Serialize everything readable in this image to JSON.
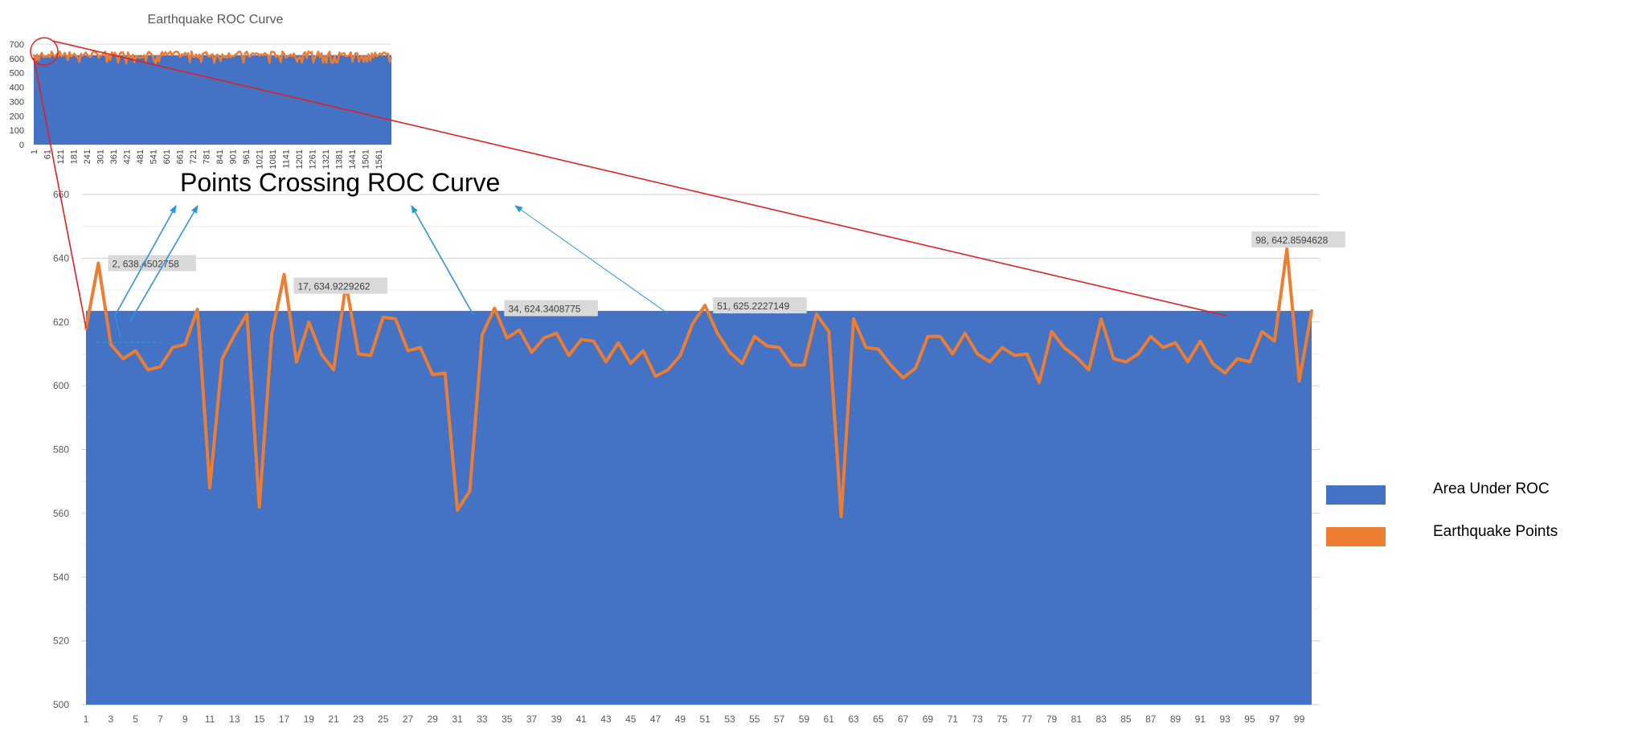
{
  "chart_data": [
    {
      "type": "area",
      "title": "Earthquake ROC Curve",
      "ylim": [
        0,
        700
      ],
      "yticks": [
        0,
        100,
        200,
        300,
        400,
        500,
        600,
        700
      ],
      "xticks": [
        "1",
        "61",
        "121",
        "181",
        "241",
        "301",
        "361",
        "421",
        "481",
        "541",
        "601",
        "661",
        "721",
        "781",
        "841",
        "901",
        "961",
        "1021",
        "1081",
        "1141",
        "1201",
        "1261",
        "1321",
        "1381",
        "1441",
        "1501",
        "1561"
      ],
      "n_points": 1620,
      "series": [
        {
          "name": "Area Under ROC",
          "constant_value": 623.5
        },
        {
          "name": "Earthquake Points",
          "typical_range": [
            560,
            660
          ]
        }
      ],
      "annotation": "zoom circle around x 1–100"
    },
    {
      "type": "area",
      "title": "Points Crossing ROC Curve",
      "ylim": [
        500,
        660
      ],
      "yticks": [
        500,
        520,
        540,
        560,
        580,
        600,
        620,
        640,
        660
      ],
      "xticks": [
        "1",
        "3",
        "5",
        "7",
        "9",
        "11",
        "13",
        "15",
        "17",
        "19",
        "21",
        "23",
        "25",
        "27",
        "29",
        "31",
        "33",
        "35",
        "37",
        "39",
        "41",
        "43",
        "45",
        "47",
        "49",
        "51",
        "53",
        "55",
        "57",
        "59",
        "61",
        "63",
        "65",
        "67",
        "69",
        "71",
        "73",
        "75",
        "77",
        "79",
        "81",
        "83",
        "85",
        "87",
        "89",
        "91",
        "93",
        "95",
        "97",
        "99"
      ],
      "x": [
        1,
        2,
        3,
        4,
        5,
        6,
        7,
        8,
        9,
        10,
        11,
        12,
        13,
        14,
        15,
        16,
        17,
        18,
        19,
        20,
        21,
        22,
        23,
        24,
        25,
        26,
        27,
        28,
        29,
        30,
        31,
        32,
        33,
        34,
        35,
        36,
        37,
        38,
        39,
        40,
        41,
        42,
        43,
        44,
        45,
        46,
        47,
        48,
        49,
        50,
        51,
        52,
        53,
        54,
        55,
        56,
        57,
        58,
        59,
        60,
        61,
        62,
        63,
        64,
        65,
        66,
        67,
        68,
        69,
        70,
        71,
        72,
        73,
        74,
        75,
        76,
        77,
        78,
        79,
        80,
        81,
        82,
        83,
        84,
        85,
        86,
        87,
        88,
        89,
        90,
        91,
        92,
        93,
        94,
        95,
        96,
        97,
        98,
        99,
        100
      ],
      "series": [
        {
          "name": "Area Under ROC",
          "values": [
            623.5,
            623.5,
            623.5,
            623.5,
            623.5,
            623.5,
            623.5,
            623.5,
            623.5,
            623.5,
            623.5,
            623.5,
            623.5,
            623.5,
            623.5,
            623.5,
            623.5,
            623.5,
            623.5,
            623.5,
            623.5,
            623.5,
            623.5,
            623.5,
            623.5,
            623.5,
            623.5,
            623.5,
            623.5,
            623.5,
            623.5,
            623.5,
            623.5,
            623.5,
            623.5,
            623.5,
            623.5,
            623.5,
            623.5,
            623.5,
            623.5,
            623.5,
            623.5,
            623.5,
            623.5,
            623.5,
            623.5,
            623.5,
            623.5,
            623.5,
            623.5,
            623.5,
            623.5,
            623.5,
            623.5,
            623.5,
            623.5,
            623.5,
            623.5,
            623.5,
            623.5,
            623.5,
            623.5,
            623.5,
            623.5,
            623.5,
            623.5,
            623.5,
            623.5,
            623.5,
            623.5,
            623.5,
            623.5,
            623.5,
            623.5,
            623.5,
            623.5,
            623.5,
            623.5,
            623.5,
            623.5,
            623.5,
            623.5,
            623.5,
            623.5,
            623.5,
            623.5,
            623.5,
            623.5,
            623.5,
            623.5,
            623.5,
            623.5,
            623.5,
            623.5,
            623.5,
            623.5,
            623.5,
            623.5,
            623.5
          ]
        },
        {
          "name": "Earthquake Points",
          "values": [
            618,
            638.45,
            613,
            608.5,
            611,
            605,
            606,
            612,
            613,
            624,
            568,
            608.5,
            616,
            622.5,
            562,
            616,
            634.92,
            607.5,
            620,
            610,
            605,
            632,
            610,
            609.5,
            621.5,
            621,
            611,
            612,
            603.5,
            604,
            561,
            567,
            616,
            624.34,
            615,
            617.5,
            610.5,
            615,
            616.5,
            609.5,
            614.5,
            614,
            607.5,
            613.5,
            607,
            611,
            603,
            605,
            609.5,
            619.5,
            625.22,
            616.5,
            610.5,
            607,
            615.5,
            612.5,
            612,
            606.5,
            606.5,
            622.5,
            617,
            559,
            621,
            612,
            611.5,
            606.5,
            602.5,
            605.5,
            615.5,
            615.5,
            610,
            616.5,
            610,
            607.5,
            612,
            609.5,
            610,
            601,
            617,
            612,
            609,
            605,
            621,
            608.5,
            607.5,
            610,
            615.5,
            612,
            613.5,
            607.5,
            614,
            607,
            604,
            608.5,
            607.5,
            617,
            614,
            642.86,
            601.5,
            623.5
          ]
        }
      ],
      "data_labels": [
        {
          "text": "2, 638.4502758"
        },
        {
          "text": "17, 634.9229262"
        },
        {
          "text": "34, 624.3408775"
        },
        {
          "text": "51, 625.2227149"
        },
        {
          "text": "98, 642.8594628"
        }
      ],
      "legend": {
        "placement": "right",
        "items": [
          {
            "label": "Area Under ROC",
            "color": "#4472C4"
          },
          {
            "label": "Earthquake Points",
            "color": "#ED7D31"
          }
        ]
      },
      "grid": true
    }
  ],
  "colors": {
    "area": "#4472C4",
    "line": "#ED7D31",
    "zoom": "#E02020",
    "arrow": "#2E95D3",
    "gridline": "#D9D9D9",
    "label_bg": "#D9D9D9"
  }
}
